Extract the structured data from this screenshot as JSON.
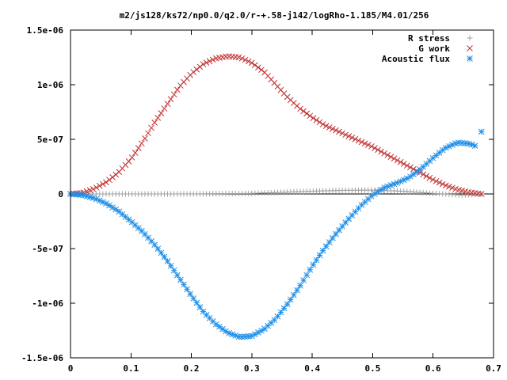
{
  "chart_data": {
    "type": "scatter",
    "title": "m2/js128/ks72/np0.0/q2.0/r-+.58-j142/logRho-1.185/M4.01/256",
    "xlabel": "",
    "ylabel": "",
    "xlim": [
      0,
      0.7
    ],
    "ylim": [
      -1.5e-06,
      1.5e-06
    ],
    "grid": false,
    "legend_position": "top-right",
    "x_ticks": [
      {
        "value": 0,
        "label": "0"
      },
      {
        "value": 0.1,
        "label": "0.1"
      },
      {
        "value": 0.2,
        "label": "0.2"
      },
      {
        "value": 0.3,
        "label": "0.3"
      },
      {
        "value": 0.4,
        "label": "0.4"
      },
      {
        "value": 0.5,
        "label": "0.5"
      },
      {
        "value": 0.6,
        "label": "0.6"
      },
      {
        "value": 0.7,
        "label": "0.7"
      }
    ],
    "y_ticks": [
      {
        "value": -1.5e-06,
        "label": "-1.5e-06"
      },
      {
        "value": -1e-06,
        "label": "-1e-06"
      },
      {
        "value": -5e-07,
        "label": "-5e-07"
      },
      {
        "value": 0,
        "label": "0"
      },
      {
        "value": 5e-07,
        "label": "5e-07"
      },
      {
        "value": 1e-06,
        "label": "1e-06"
      },
      {
        "value": 1.5e-06,
        "label": "1.5e-06"
      }
    ],
    "x_range": {
      "start": 0,
      "end": 0.68,
      "count": 128
    },
    "series": [
      {
        "name": "R stress",
        "marker": "plus",
        "color": "#a0a0a0",
        "control_points": [
          [
            0,
            0
          ],
          [
            0.1,
            0.0
          ],
          [
            0.2,
            0.0
          ],
          [
            0.3,
            5e-09
          ],
          [
            0.35,
            1.5e-08
          ],
          [
            0.4,
            2.5e-08
          ],
          [
            0.45,
            3.3e-08
          ],
          [
            0.5,
            3.5e-08
          ],
          [
            0.55,
            2.5e-08
          ],
          [
            0.6,
            5e-09
          ],
          [
            0.65,
            -1e-08
          ],
          [
            0.68,
            0
          ]
        ]
      },
      {
        "name": "G work",
        "marker": "cross",
        "color": "#c03030",
        "control_points": [
          [
            0,
            0
          ],
          [
            0.02,
            1e-08
          ],
          [
            0.04,
            5e-08
          ],
          [
            0.06,
            1.1e-07
          ],
          [
            0.08,
            2e-07
          ],
          [
            0.1,
            3.2e-07
          ],
          [
            0.12,
            4.8e-07
          ],
          [
            0.14,
            6.6e-07
          ],
          [
            0.16,
            8.2e-07
          ],
          [
            0.18,
            9.8e-07
          ],
          [
            0.2,
            1.1e-06
          ],
          [
            0.22,
            1.19e-06
          ],
          [
            0.24,
            1.24e-06
          ],
          [
            0.26,
            1.26e-06
          ],
          [
            0.28,
            1.25e-06
          ],
          [
            0.3,
            1.2e-06
          ],
          [
            0.32,
            1.12e-06
          ],
          [
            0.34,
            1e-06
          ],
          [
            0.36,
            8.8e-07
          ],
          [
            0.38,
            7.8e-07
          ],
          [
            0.4,
            7e-07
          ],
          [
            0.42,
            6.3e-07
          ],
          [
            0.44,
            5.8e-07
          ],
          [
            0.46,
            5.3e-07
          ],
          [
            0.48,
            4.8e-07
          ],
          [
            0.5,
            4.3e-07
          ],
          [
            0.52,
            3.7e-07
          ],
          [
            0.54,
            3.1e-07
          ],
          [
            0.56,
            2.5e-07
          ],
          [
            0.58,
            1.9e-07
          ],
          [
            0.6,
            1.3e-07
          ],
          [
            0.62,
            8e-08
          ],
          [
            0.64,
            4e-08
          ],
          [
            0.66,
            1.5e-08
          ],
          [
            0.68,
            0
          ]
        ]
      },
      {
        "name": "Acoustic flux",
        "marker": "star",
        "color": "#1f8fe8",
        "control_points": [
          [
            0,
            0
          ],
          [
            0.02,
            -1e-08
          ],
          [
            0.04,
            -4e-08
          ],
          [
            0.06,
            -9e-08
          ],
          [
            0.08,
            -1.6e-07
          ],
          [
            0.1,
            -2.5e-07
          ],
          [
            0.12,
            -3.5e-07
          ],
          [
            0.14,
            -4.7e-07
          ],
          [
            0.16,
            -6.1e-07
          ],
          [
            0.18,
            -7.7e-07
          ],
          [
            0.2,
            -9.3e-07
          ],
          [
            0.22,
            -1.08e-06
          ],
          [
            0.24,
            -1.19e-06
          ],
          [
            0.26,
            -1.27e-06
          ],
          [
            0.28,
            -1.31e-06
          ],
          [
            0.3,
            -1.3e-06
          ],
          [
            0.32,
            -1.24e-06
          ],
          [
            0.34,
            -1.14e-06
          ],
          [
            0.36,
            -1e-06
          ],
          [
            0.38,
            -8.4e-07
          ],
          [
            0.4,
            -6.6e-07
          ],
          [
            0.42,
            -5e-07
          ],
          [
            0.44,
            -3.6e-07
          ],
          [
            0.46,
            -2.3e-07
          ],
          [
            0.48,
            -1.1e-07
          ],
          [
            0.5,
            -1e-08
          ],
          [
            0.52,
            6e-08
          ],
          [
            0.54,
            1e-07
          ],
          [
            0.56,
            1.5e-07
          ],
          [
            0.58,
            2.3e-07
          ],
          [
            0.6,
            3.3e-07
          ],
          [
            0.62,
            4.2e-07
          ],
          [
            0.64,
            4.7e-07
          ],
          [
            0.66,
            4.6e-07
          ],
          [
            0.67,
            4.4e-07
          ]
        ],
        "extra_points": [
          [
            0.68,
            5.7e-07
          ]
        ]
      }
    ]
  }
}
